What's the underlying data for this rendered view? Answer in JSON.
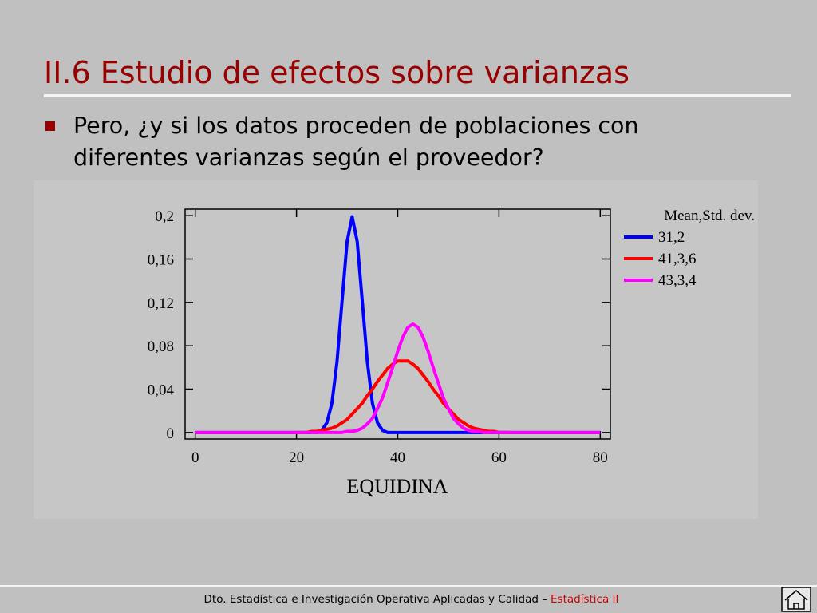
{
  "slide": {
    "title": "II.6 Estudio de efectos sobre varianzas",
    "bullet": [
      "Pero, ¿y si los datos proceden de poblaciones con",
      "diferentes varianzas según el proveedor?"
    ],
    "footer": {
      "text": "Dto. Estadística e Investigación Operativa Aplicadas y Calidad –",
      "course": "Estadística II"
    }
  },
  "chart_data": {
    "type": "line",
    "x_label": "EQUIDINA",
    "legend_title": "Mean,Std. dev.",
    "legend": "right",
    "xlim": [
      -2,
      82
    ],
    "ylim": [
      -0.006,
      0.206
    ],
    "xticks": [
      0,
      20,
      40,
      60,
      80
    ],
    "yticks": [
      0,
      {
        "value": 0.04,
        "label": "0,04"
      },
      {
        "value": 0.08,
        "label": "0,08"
      },
      {
        "value": 0.12,
        "label": "0,12"
      },
      {
        "value": 0.16,
        "label": "0,16"
      },
      {
        "value": 0.2,
        "label": "0,2"
      }
    ],
    "x": [
      0,
      1,
      2,
      3,
      4,
      5,
      6,
      7,
      8,
      9,
      10,
      11,
      12,
      13,
      14,
      15,
      16,
      17,
      18,
      19,
      20,
      21,
      22,
      23,
      24,
      25,
      26,
      27,
      28,
      29,
      30,
      31,
      32,
      33,
      34,
      35,
      36,
      37,
      38,
      39,
      40,
      41,
      42,
      43,
      44,
      45,
      46,
      47,
      48,
      49,
      50,
      51,
      52,
      53,
      54,
      55,
      56,
      57,
      58,
      59,
      60,
      61,
      62,
      63,
      64,
      65,
      66,
      67,
      68,
      69,
      70,
      71,
      72,
      73,
      74,
      75,
      76,
      77,
      78,
      79,
      80
    ],
    "series": [
      {
        "name": "31,2",
        "color": "#0000ff",
        "values": [
          0,
          0,
          0,
          0,
          0,
          0,
          0,
          0,
          0,
          0,
          0,
          0,
          0,
          0,
          0,
          0,
          0,
          0,
          0,
          0,
          0,
          0,
          0,
          0,
          0,
          0.002,
          0.009,
          0.027,
          0.065,
          0.121,
          0.176,
          0.199,
          0.176,
          0.121,
          0.065,
          0.027,
          0.009,
          0.002,
          0,
          0,
          0,
          0,
          0,
          0,
          0,
          0,
          0,
          0,
          0,
          0,
          0,
          0,
          0,
          0,
          0,
          0,
          0,
          0,
          0,
          0,
          0,
          0,
          0,
          0,
          0,
          0,
          0,
          0,
          0,
          0,
          0,
          0,
          0,
          0,
          0,
          0,
          0,
          0,
          0,
          0,
          0
        ]
      },
      {
        "name": "41,3,6",
        "color": "#ff0000",
        "values": [
          null,
          null,
          null,
          null,
          null,
          null,
          null,
          null,
          null,
          null,
          null,
          null,
          null,
          null,
          null,
          null,
          null,
          null,
          null,
          null,
          0,
          0,
          0,
          0.001,
          0.001,
          0.002,
          0.003,
          0.004,
          0.006,
          0.009,
          0.012,
          0.017,
          0.022,
          0.027,
          0.034,
          0.04,
          0.047,
          0.053,
          0.059,
          0.063,
          0.066,
          0.066,
          0.066,
          0.063,
          0.059,
          0.053,
          0.047,
          0.04,
          0.034,
          0.027,
          0.022,
          0.017,
          0.012,
          0.009,
          0.006,
          0.004,
          0.003,
          0.002,
          0.001,
          0.001,
          0,
          0,
          0,
          null,
          null,
          null,
          null,
          null,
          null,
          null,
          null,
          null,
          null,
          null,
          null,
          null,
          null,
          null,
          null,
          null,
          null
        ]
      },
      {
        "name": "43,3,4",
        "color": "#ff00ff",
        "values": [
          0,
          0,
          0,
          0,
          0,
          0,
          0,
          0,
          0,
          0,
          0,
          0,
          0,
          0,
          0,
          0,
          0,
          0,
          0,
          0,
          0,
          0,
          0,
          0,
          0,
          0,
          0,
          0,
          0,
          0,
          0.001,
          0.001,
          0.002,
          0.004,
          0.008,
          0.013,
          0.022,
          0.032,
          0.046,
          0.06,
          0.075,
          0.088,
          0.097,
          0.1,
          0.097,
          0.088,
          0.075,
          0.06,
          0.046,
          0.032,
          0.022,
          0.013,
          0.008,
          0.004,
          0.002,
          0.001,
          0.001,
          0,
          0,
          0,
          0,
          0,
          0,
          0,
          0,
          0,
          0,
          0,
          0,
          0,
          0,
          0,
          0,
          0,
          0,
          0,
          0,
          0,
          0,
          0,
          0
        ]
      }
    ]
  }
}
